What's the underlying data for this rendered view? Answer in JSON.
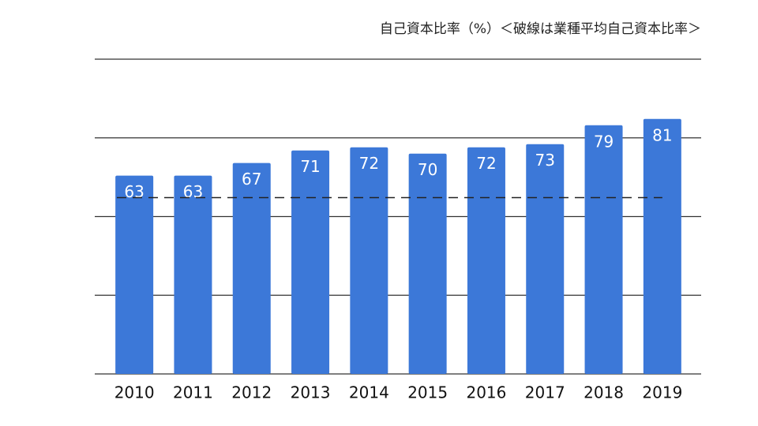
{
  "chart_data": {
    "type": "bar",
    "title": "自己資本比率（%）＜破線は業種平均自己資本比率＞",
    "categories": [
      "2010",
      "2011",
      "2012",
      "2013",
      "2014",
      "2015",
      "2016",
      "2017",
      "2018",
      "2019"
    ],
    "values": [
      63,
      63,
      67,
      71,
      72,
      70,
      72,
      73,
      79,
      81
    ],
    "color": "#3c78d8",
    "ylim": [
      0,
      100
    ],
    "yticks": [
      0,
      25,
      50,
      75,
      100
    ],
    "grid": true,
    "reference_line": 56
  }
}
